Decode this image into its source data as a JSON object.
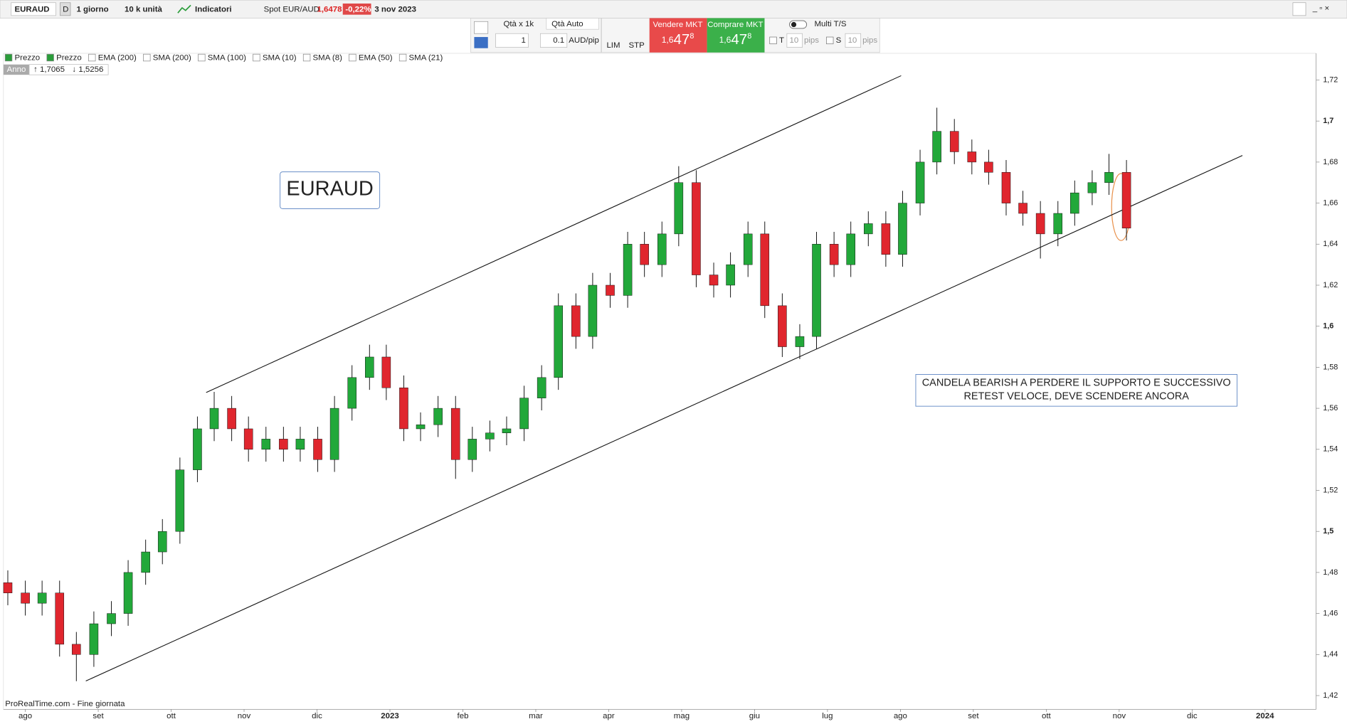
{
  "toolbar": {
    "symbol": "EURAUD",
    "period_code": "D",
    "period": "1 giorno",
    "units": "10 k unità",
    "indicators": "Indicatori",
    "instrument": "Spot EUR/AUD",
    "price": "1,6478",
    "change": "-0,22%",
    "date": "3 nov 2023"
  },
  "order_panel": {
    "qty_label": "Qtà  x 1k",
    "qty_auto": "Qtà Auto",
    "qty": "1",
    "pip_value": "0.1",
    "pip_unit": "AUD/pip",
    "lim": "LIM",
    "stp": "STP",
    "sell_label": "Vendere MKT",
    "sell_price": [
      "1,6",
      "47",
      "8"
    ],
    "buy_label": "Comprare MKT",
    "buy_price": [
      "1,6",
      "47",
      "8"
    ],
    "multi": "Multi T/S",
    "t_label": "T",
    "t_value": "10",
    "t_unit": "pips",
    "s_label": "S",
    "s_value": "10",
    "s_unit": "pips"
  },
  "legend": [
    "Prezzo",
    "Prezzo",
    "EMA (200)",
    "SMA (200)",
    "SMA (100)",
    "SMA (10)",
    "SMA (8)",
    "EMA (50)",
    "SMA (21)"
  ],
  "range": {
    "label": "Anno",
    "high": "1,7065",
    "low": "1,5256"
  },
  "footer": "ProRealTime.com - Fine giornata",
  "chart_data": {
    "type": "candlestick",
    "label": "EURAUD",
    "annotation": [
      "CANDELA BEARISH A PERDERE IL SUPPORTO E SUCCESSIVO",
      "RETEST VELOCE, DEVE SCENDERE ANCORA"
    ],
    "up_color": "#22a83a",
    "down_color": "#e0262e",
    "x": [
      -0.24,
      0,
      0.23,
      0.47,
      0.7,
      0.94,
      1.18,
      1.41,
      1.65,
      1.88,
      2.12,
      2.36,
      2.59,
      2.83,
      3.06,
      3.3,
      3.54,
      3.77,
      4.01,
      4.24,
      4.48,
      4.72,
      4.95,
      5.19,
      5.42,
      5.66,
      5.9,
      6.13,
      6.37,
      6.6,
      6.84,
      7.08,
      7.31,
      7.55,
      7.78,
      8.02,
      8.26,
      8.49,
      8.73,
      8.96,
      9.2,
      9.44,
      9.67,
      9.91,
      10.14,
      10.38,
      10.62,
      10.85,
      11.09,
      11.32,
      11.56,
      11.8,
      12.03,
      12.27,
      12.5,
      12.74,
      12.98,
      13.21,
      13.45,
      13.68,
      13.92,
      14.16,
      14.39,
      14.63,
      14.86,
      15.1
    ],
    "open": [
      1.475,
      1.47,
      1.465,
      1.47,
      1.445,
      1.44,
      1.455,
      1.46,
      1.48,
      1.49,
      1.5,
      1.53,
      1.55,
      1.56,
      1.55,
      1.54,
      1.545,
      1.54,
      1.545,
      1.535,
      1.56,
      1.575,
      1.585,
      1.57,
      1.55,
      1.552,
      1.56,
      1.535,
      1.545,
      1.548,
      1.55,
      1.565,
      1.575,
      1.61,
      1.595,
      1.62,
      1.615,
      1.64,
      1.63,
      1.645,
      1.67,
      1.625,
      1.62,
      1.63,
      1.645,
      1.61,
      1.59,
      1.595,
      1.64,
      1.63,
      1.645,
      1.65,
      1.635,
      1.66,
      1.68,
      1.695,
      1.685,
      1.68,
      1.675,
      1.66,
      1.655,
      1.645,
      1.655,
      1.665,
      1.67,
      1.675
    ],
    "high": [
      1.481,
      1.476,
      1.476,
      1.476,
      1.451,
      1.461,
      1.466,
      1.486,
      1.496,
      1.506,
      1.536,
      1.556,
      1.568,
      1.566,
      1.556,
      1.551,
      1.551,
      1.551,
      1.551,
      1.566,
      1.581,
      1.591,
      1.591,
      1.576,
      1.558,
      1.566,
      1.566,
      1.551,
      1.554,
      1.556,
      1.571,
      1.581,
      1.616,
      1.616,
      1.626,
      1.626,
      1.646,
      1.646,
      1.651,
      1.678,
      1.676,
      1.631,
      1.636,
      1.651,
      1.651,
      1.616,
      1.601,
      1.646,
      1.646,
      1.651,
      1.656,
      1.656,
      1.666,
      1.686,
      1.7065,
      1.701,
      1.691,
      1.686,
      1.681,
      1.666,
      1.661,
      1.661,
      1.671,
      1.676,
      1.684,
      1.681
    ],
    "low": [
      1.464,
      1.459,
      1.459,
      1.439,
      1.427,
      1.434,
      1.449,
      1.454,
      1.474,
      1.484,
      1.494,
      1.524,
      1.544,
      1.544,
      1.534,
      1.534,
      1.534,
      1.534,
      1.529,
      1.529,
      1.554,
      1.569,
      1.564,
      1.544,
      1.544,
      1.546,
      1.5256,
      1.529,
      1.539,
      1.542,
      1.544,
      1.559,
      1.569,
      1.589,
      1.589,
      1.609,
      1.609,
      1.624,
      1.624,
      1.639,
      1.619,
      1.614,
      1.614,
      1.624,
      1.604,
      1.585,
      1.584,
      1.589,
      1.624,
      1.624,
      1.639,
      1.629,
      1.629,
      1.654,
      1.674,
      1.679,
      1.674,
      1.669,
      1.654,
      1.649,
      1.633,
      1.639,
      1.649,
      1.659,
      1.664,
      1.6418
    ],
    "close": [
      1.47,
      1.465,
      1.47,
      1.445,
      1.44,
      1.455,
      1.46,
      1.48,
      1.49,
      1.5,
      1.53,
      1.55,
      1.56,
      1.55,
      1.54,
      1.545,
      1.54,
      1.545,
      1.535,
      1.56,
      1.575,
      1.585,
      1.57,
      1.55,
      1.552,
      1.56,
      1.535,
      1.545,
      1.548,
      1.55,
      1.565,
      1.575,
      1.61,
      1.595,
      1.62,
      1.615,
      1.64,
      1.63,
      1.645,
      1.67,
      1.625,
      1.62,
      1.63,
      1.645,
      1.61,
      1.59,
      1.595,
      1.64,
      1.63,
      1.645,
      1.65,
      1.635,
      1.66,
      1.68,
      1.695,
      1.685,
      1.68,
      1.675,
      1.66,
      1.655,
      1.645,
      1.655,
      1.665,
      1.67,
      1.675,
      1.6478
    ],
    "trendlines": [
      {
        "x": [
          2.48,
          12.01
        ],
        "y": [
          1.5677,
          1.7221
        ]
      },
      {
        "x": [
          0.83,
          16.69
        ],
        "y": [
          1.4271,
          1.6832
        ]
      }
    ],
    "xlim": [
      -0.3,
      17.7
    ],
    "ylim": [
      1.4133,
      1.733
    ],
    "xticks": [
      {
        "value": 0,
        "label": "ago"
      },
      {
        "value": 1,
        "label": "set"
      },
      {
        "value": 2,
        "label": "ott"
      },
      {
        "value": 3,
        "label": "nov"
      },
      {
        "value": 4,
        "label": "dic"
      },
      {
        "value": 5,
        "label": "2023"
      },
      {
        "value": 6,
        "label": "feb"
      },
      {
        "value": 7,
        "label": "mar"
      },
      {
        "value": 8,
        "label": "apr"
      },
      {
        "value": 9,
        "label": "mag"
      },
      {
        "value": 10,
        "label": "giu"
      },
      {
        "value": 11,
        "label": "lug"
      },
      {
        "value": 12,
        "label": "ago"
      },
      {
        "value": 13,
        "label": "set"
      },
      {
        "value": 14,
        "label": "ott"
      },
      {
        "value": 15,
        "label": "nov"
      },
      {
        "value": 16,
        "label": "dic"
      },
      {
        "value": 17,
        "label": "2024"
      }
    ],
    "yticks": [
      {
        "value": 1.42,
        "label": "1,42"
      },
      {
        "value": 1.44,
        "label": "1,44"
      },
      {
        "value": 1.46,
        "label": "1,46"
      },
      {
        "value": 1.48,
        "label": "1,48"
      },
      {
        "value": 1.5,
        "label": "1,5"
      },
      {
        "value": 1.52,
        "label": "1,52"
      },
      {
        "value": 1.54,
        "label": "1,54"
      },
      {
        "value": 1.56,
        "label": "1,56"
      },
      {
        "value": 1.58,
        "label": "1,58"
      },
      {
        "value": 1.6,
        "label": "1,6"
      },
      {
        "value": 1.62,
        "label": "1,62"
      },
      {
        "value": 1.64,
        "label": "1,64"
      },
      {
        "value": 1.66,
        "label": "1,66"
      },
      {
        "value": 1.68,
        "label": "1,68"
      },
      {
        "value": 1.7,
        "label": "1,7"
      },
      {
        "value": 1.72,
        "label": "1,72"
      }
    ],
    "grid": false
  }
}
